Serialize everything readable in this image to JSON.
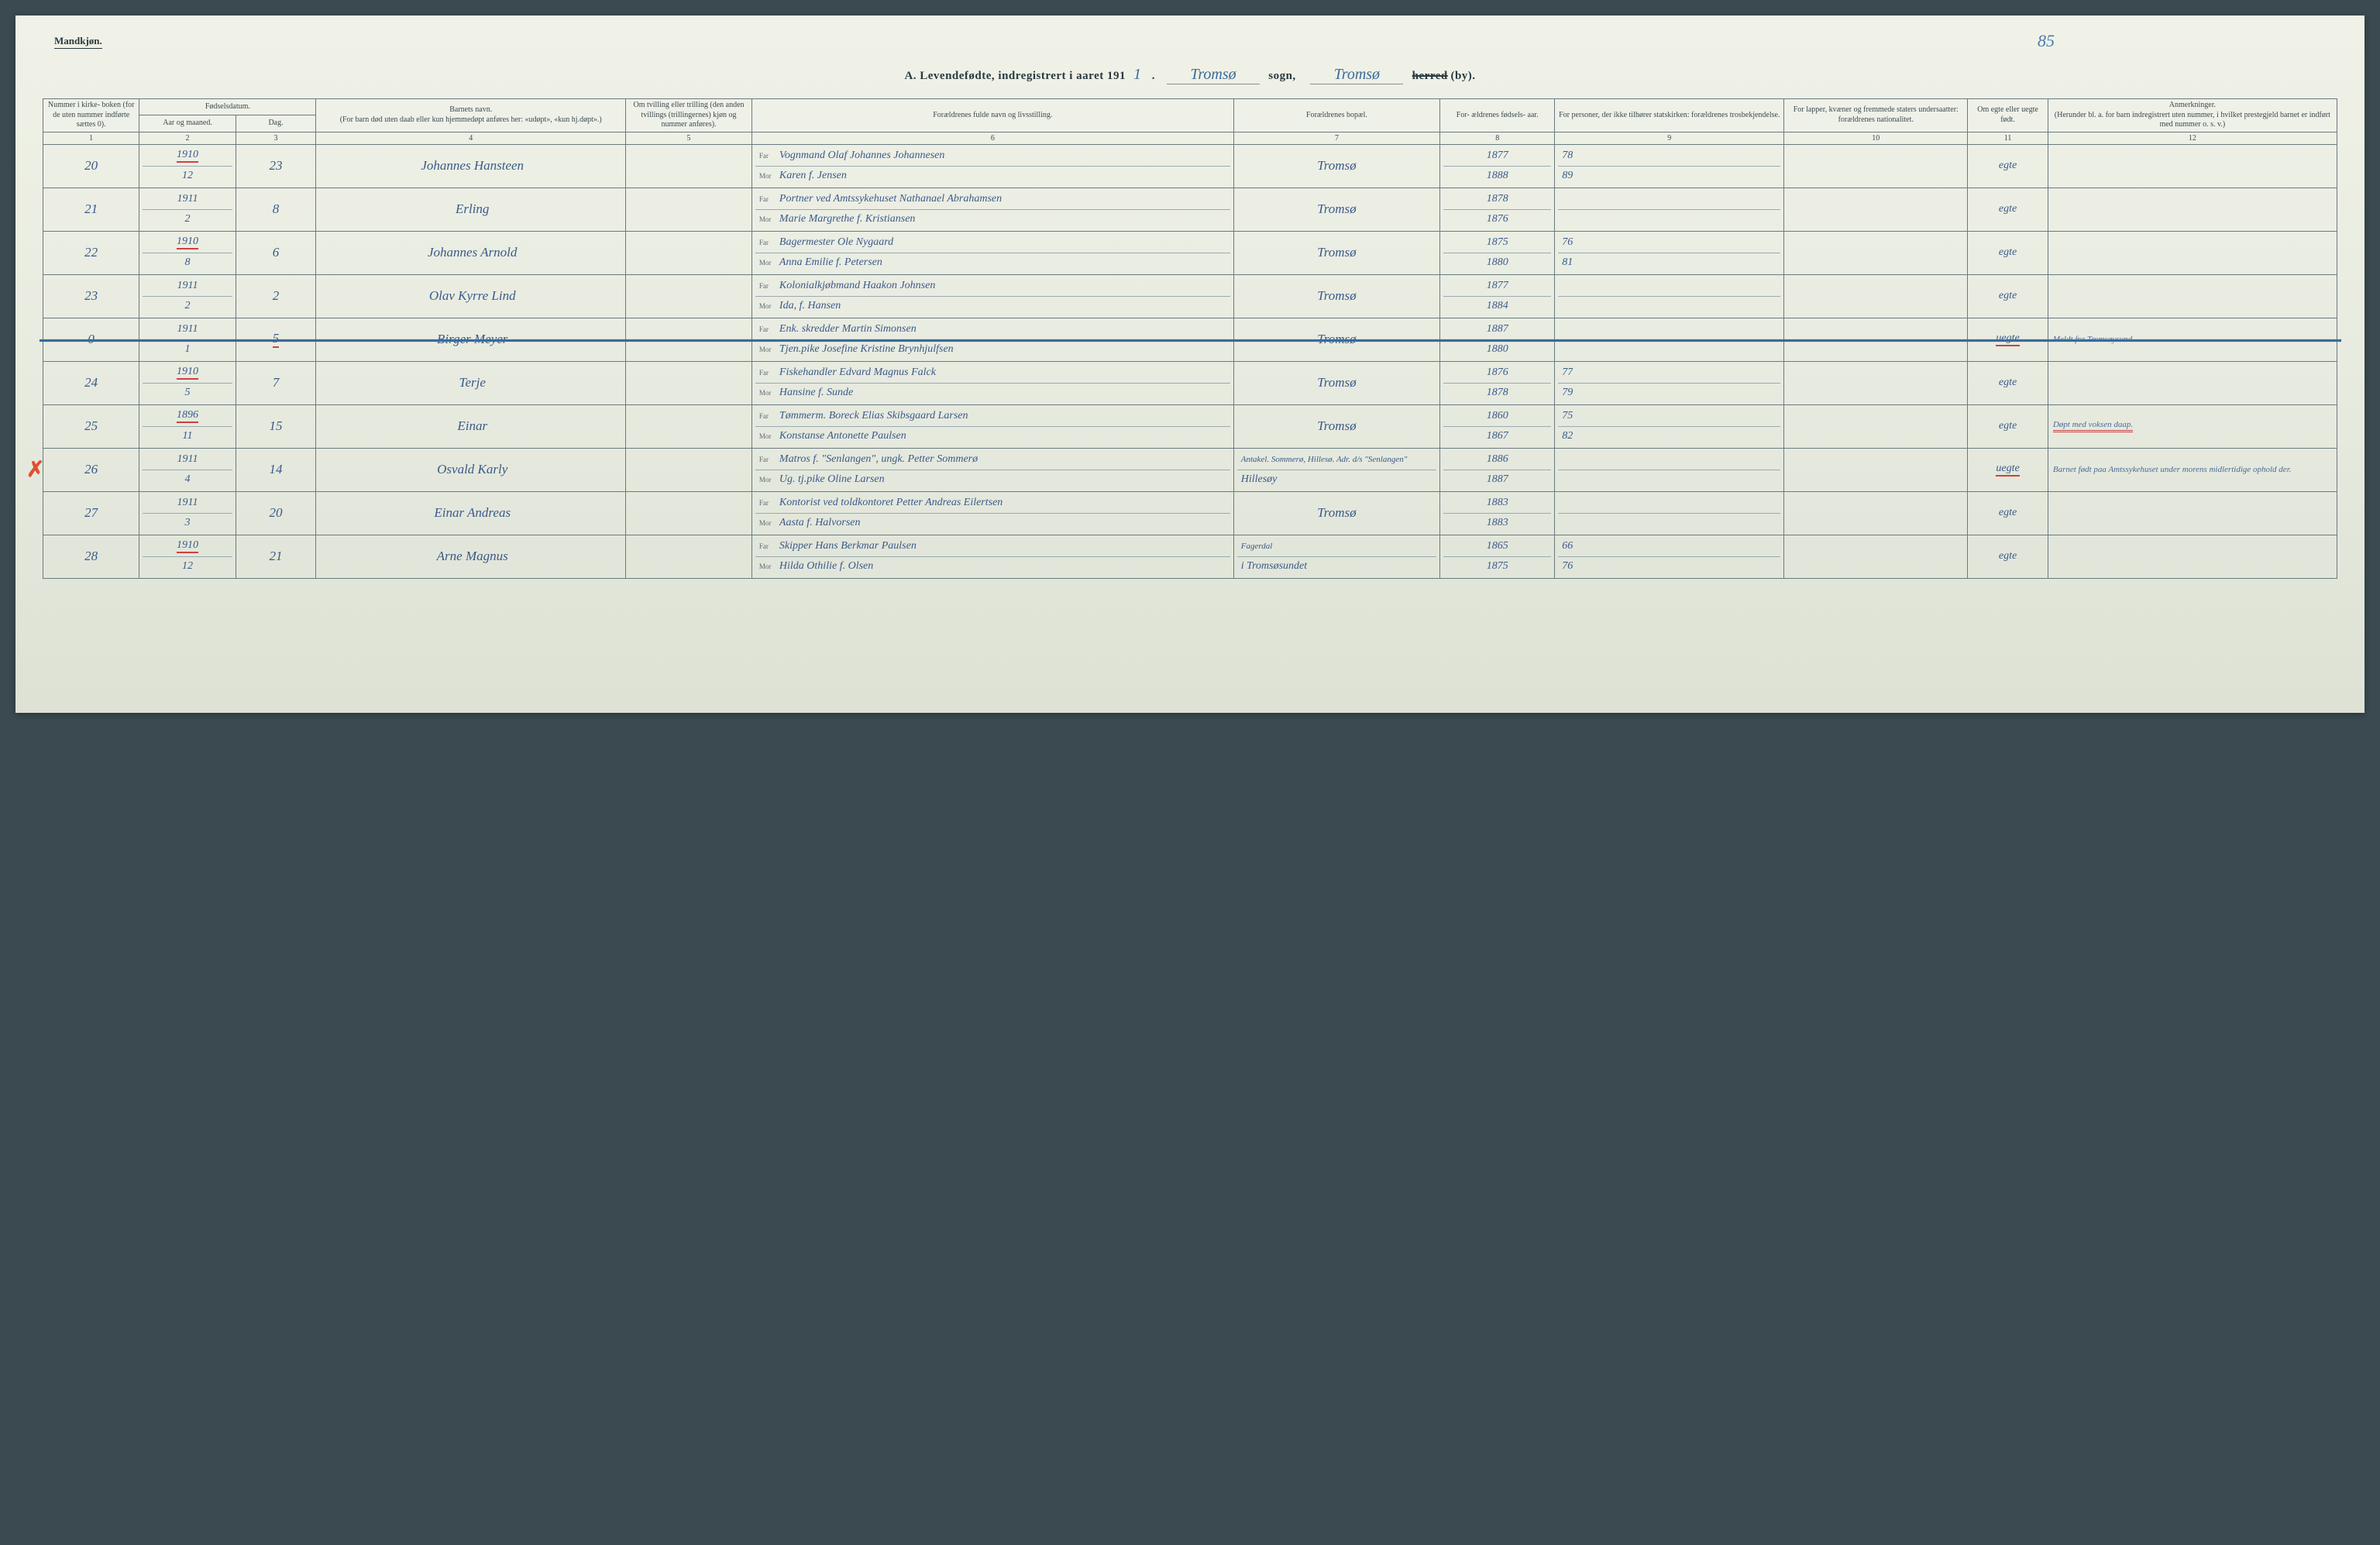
{
  "corner_label": "Mandkjøn.",
  "page_number_hand": "85",
  "header": {
    "prefix": "A.  Levendefødte, indregistrert i aaret 191",
    "year_suffix": "1",
    "sogn_hand": "Tromsø",
    "sogn_label": "sogn,",
    "herred_hand": "Tromsø",
    "herred_struck": "herred",
    "by_label": "(by)."
  },
  "columns": {
    "c1": "Nummer i kirke- boken (for de uten nummer indførte sættes 0).",
    "c2_top": "Fødselsdatum.",
    "c2a": "Aar og maaned.",
    "c2b": "Dag.",
    "c4": "Barnets navn.\n(For barn død uten daab eller kun hjemmedøpt anføres her: «udøpt», «kun hj.døpt».)",
    "c5": "Om tvilling eller trilling (den anden tvillings (trillingernes) kjøn og nummer anføres).",
    "c6": "Forældrenes fulde navn og livsstilling.",
    "c7": "Forældrenes bopæl.",
    "c8": "For- ældrenes fødsels- aar.",
    "c9": "For personer, der ikke tilhører statskirken: forældrenes trosbekjendelse.",
    "c10": "For lapper, kvæner og fremmede staters undersaatter: forældrenes nationalitet.",
    "c11": "Om egte eller uegte født.",
    "c12": "Anmerkninger.\n(Herunder bl. a. for barn indregistrert uten nummer, i hvilket prestegjeld barnet er indført med nummer o. s. v.)"
  },
  "colnums": [
    "1",
    "2",
    "3",
    "4",
    "5",
    "6",
    "7",
    "8",
    "9",
    "10",
    "11",
    "12"
  ],
  "far_label": "Far",
  "mor_label": "Mor",
  "rows": [
    {
      "num": "20",
      "year": "1910",
      "month": "12",
      "day": "23",
      "year_underlined": true,
      "name": "Johannes Hansteen",
      "far": "Vognmand Olaf Johannes Johannesen",
      "mor": "Karen f. Jensen",
      "bosted": "Tromsø",
      "far_aar": "1877",
      "mor_aar": "1888",
      "route_far": "78",
      "route_mor": "89",
      "egte": "egte",
      "remarks": ""
    },
    {
      "num": "21",
      "year": "1911",
      "month": "2",
      "day": "8",
      "name": "Erling",
      "far": "Portner ved Amtssykehuset Nathanael Abrahamsen",
      "mor": "Marie Margrethe f. Kristiansen",
      "bosted": "Tromsø",
      "far_aar": "1878",
      "mor_aar": "1876",
      "route_far": "",
      "route_mor": "",
      "egte": "egte",
      "remarks": ""
    },
    {
      "num": "22",
      "year": "1910",
      "month": "8",
      "day": "6",
      "year_underlined": true,
      "name": "Johannes Arnold",
      "far": "Bagermester Ole Nygaard",
      "mor": "Anna Emilie f. Petersen",
      "bosted": "Tromsø",
      "far_aar": "1875",
      "mor_aar": "1880",
      "route_far": "76",
      "route_mor": "81",
      "egte": "egte",
      "remarks": ""
    },
    {
      "num": "23",
      "year": "1911",
      "month": "2",
      "day": "2",
      "name": "Olav Kyrre Lind",
      "far": "Kolonialkjøbmand Haakon Johnsen",
      "mor": "Ida, f. Hansen",
      "bosted": "Tromsø",
      "far_aar": "1877",
      "mor_aar": "1884",
      "route_far": "",
      "route_mor": "",
      "egte": "egte",
      "remarks": ""
    },
    {
      "num": "0",
      "year": "1911",
      "month": "1",
      "day": "5",
      "struck": true,
      "day_underlined": true,
      "name": "Birger Meyer",
      "far": "Enk. skredder Martin Simonsen",
      "mor": "Tjen.pike Josefine Kristine Brynhjulfsen",
      "bosted": "Tromsø",
      "far_aar": "1887",
      "mor_aar": "1880",
      "route_far": "",
      "route_mor": "",
      "egte": "uegte",
      "egte_underlined": true,
      "remarks": "Meldt fra Tromsøysund."
    },
    {
      "num": "24",
      "year": "1910",
      "month": "5",
      "day": "7",
      "year_underlined": true,
      "name": "Terje",
      "far": "Fiskehandler Edvard Magnus Falck",
      "mor": "Hansine f. Sunde",
      "bosted": "Tromsø",
      "far_aar": "1876",
      "mor_aar": "1878",
      "route_far": "77",
      "route_mor": "79",
      "egte": "egte",
      "remarks": ""
    },
    {
      "num": "25",
      "year": "1896",
      "month": "11",
      "day": "15",
      "year_underlined": true,
      "name": "Einar",
      "far": "Tømmerm. Boreck Elias Skibsgaard Larsen",
      "mor": "Konstanse Antonette Paulsen",
      "bosted": "Tromsø",
      "far_aar": "1860",
      "mor_aar": "1867",
      "route_far": "75",
      "route_mor": "82",
      "egte": "egte",
      "remarks": "Døpt med voksen daap.",
      "remarks_underlined": true
    },
    {
      "num": "26",
      "year": "1911",
      "month": "4",
      "day": "14",
      "red_x": true,
      "name": "Osvald Karly",
      "far": "Matros f. \"Senlangen\", ungk. Petter Sommerø",
      "mor": "Ug. tj.pike Oline Larsen",
      "bosted_far": "Antakel. Sommerø, Hillesø. Adr. d/s \"Senlangen\"",
      "bosted_mor": "Hillesøy",
      "far_aar": "1886",
      "mor_aar": "1887",
      "route_far": "",
      "route_mor": "",
      "egte": "uegte",
      "egte_underlined": true,
      "remarks": "Barnet født paa Amtssykehuset under morens midlertidige ophold der."
    },
    {
      "num": "27",
      "year": "1911",
      "month": "3",
      "day": "20",
      "name": "Einar Andreas",
      "far": "Kontorist ved toldkontoret Petter Andreas Eilertsen",
      "mor": "Aasta f. Halvorsen",
      "bosted": "Tromsø",
      "far_aar": "1883",
      "mor_aar": "1883",
      "route_far": "",
      "route_mor": "",
      "egte": "egte",
      "remarks": ""
    },
    {
      "num": "28",
      "year": "1910",
      "month": "12",
      "day": "21",
      "year_underlined": true,
      "name": "Arne Magnus",
      "far": "Skipper Hans Berkmar Paulsen",
      "mor": "Hilda Othilie f. Olsen",
      "bosted_far": "Fagerdal",
      "bosted_mor": "i Tromsøsundet",
      "far_aar": "1865",
      "mor_aar": "1875",
      "route_far": "66",
      "route_mor": "76",
      "egte": "egte",
      "remarks": ""
    }
  ]
}
